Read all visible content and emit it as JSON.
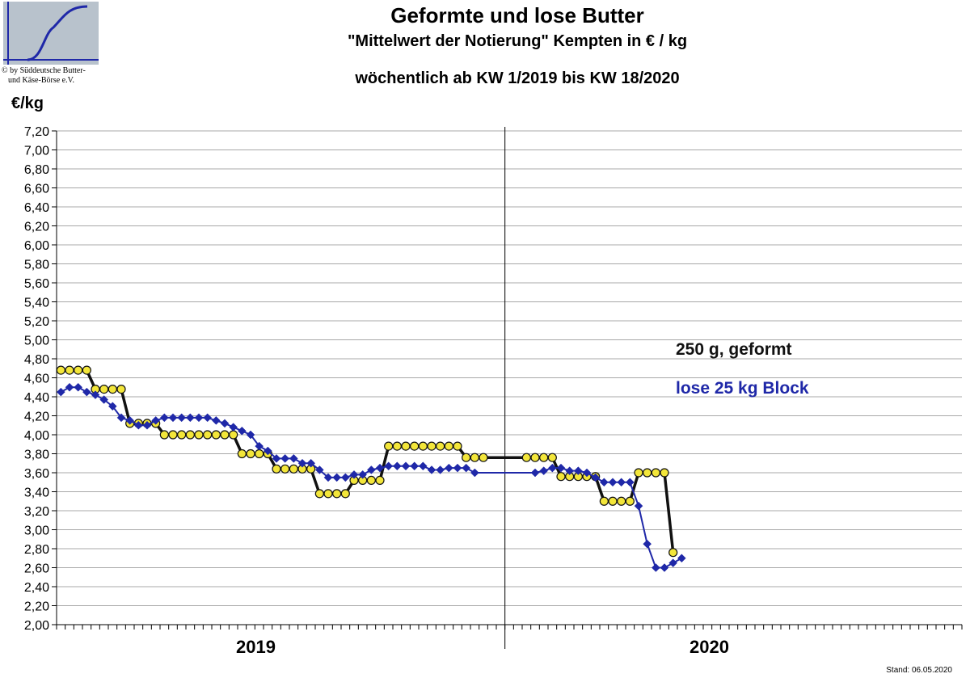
{
  "logo": {
    "caption_line1": "© by Süddeutsche Butter-",
    "caption_line2": "und Käse-Börse e.V."
  },
  "stand": "Stand: 06.05.2020",
  "chart_data": {
    "type": "line",
    "title": "Geformte und lose Butter",
    "subtitle": "\"Mittelwert der Notierung\" Kempten in € / kg",
    "subtitle2": "wöchentlich ab KW 1/2019 bis KW 18/2020",
    "ylabel": "€/kg",
    "ylim": [
      2.0,
      7.2
    ],
    "ystep": 0.2,
    "yticks": [
      "2,00",
      "2,20",
      "2,40",
      "2,60",
      "2,80",
      "3,00",
      "3,20",
      "3,40",
      "3,60",
      "3,80",
      "4,00",
      "4,20",
      "4,40",
      "4,60",
      "4,80",
      "5,00",
      "5,20",
      "5,40",
      "5,60",
      "5,80",
      "6,00",
      "6,20",
      "6,40",
      "6,60",
      "6,80",
      "7,00",
      "7,20"
    ],
    "x_unit": "week",
    "x_total_weeks": 105,
    "x_groups": [
      {
        "label": "2019",
        "weeks": 52
      },
      {
        "label": "2020",
        "weeks": 53
      }
    ],
    "grid": true,
    "legend_placement": "right-middle",
    "series": [
      {
        "name": "250 g, geformt",
        "color": "#111111",
        "marker": "circle",
        "marker_fill": "#f3e63a",
        "points": [
          [
            1,
            4.68
          ],
          [
            2,
            4.68
          ],
          [
            3,
            4.68
          ],
          [
            4,
            4.68
          ],
          [
            5,
            4.48
          ],
          [
            6,
            4.48
          ],
          [
            7,
            4.48
          ],
          [
            8,
            4.48
          ],
          [
            9,
            4.12
          ],
          [
            10,
            4.12
          ],
          [
            11,
            4.12
          ],
          [
            12,
            4.12
          ],
          [
            13,
            4.0
          ],
          [
            14,
            4.0
          ],
          [
            15,
            4.0
          ],
          [
            16,
            4.0
          ],
          [
            17,
            4.0
          ],
          [
            18,
            4.0
          ],
          [
            19,
            4.0
          ],
          [
            20,
            4.0
          ],
          [
            21,
            4.0
          ],
          [
            22,
            3.8
          ],
          [
            23,
            3.8
          ],
          [
            24,
            3.8
          ],
          [
            25,
            3.8
          ],
          [
            26,
            3.64
          ],
          [
            27,
            3.64
          ],
          [
            28,
            3.64
          ],
          [
            29,
            3.64
          ],
          [
            30,
            3.64
          ],
          [
            31,
            3.38
          ],
          [
            32,
            3.38
          ],
          [
            33,
            3.38
          ],
          [
            34,
            3.38
          ],
          [
            35,
            3.52
          ],
          [
            36,
            3.52
          ],
          [
            37,
            3.52
          ],
          [
            38,
            3.52
          ],
          [
            39,
            3.88
          ],
          [
            40,
            3.88
          ],
          [
            41,
            3.88
          ],
          [
            42,
            3.88
          ],
          [
            43,
            3.88
          ],
          [
            44,
            3.88
          ],
          [
            45,
            3.88
          ],
          [
            46,
            3.88
          ],
          [
            47,
            3.88
          ],
          [
            48,
            3.76
          ],
          [
            49,
            3.76
          ],
          [
            50,
            3.76
          ],
          [
            55,
            3.76
          ],
          [
            56,
            3.76
          ],
          [
            57,
            3.76
          ],
          [
            58,
            3.76
          ],
          [
            59,
            3.56
          ],
          [
            60,
            3.56
          ],
          [
            61,
            3.56
          ],
          [
            62,
            3.56
          ],
          [
            63,
            3.56
          ],
          [
            64,
            3.3
          ],
          [
            65,
            3.3
          ],
          [
            66,
            3.3
          ],
          [
            67,
            3.3
          ],
          [
            68,
            3.6
          ],
          [
            69,
            3.6
          ],
          [
            70,
            3.6
          ],
          [
            71,
            3.6
          ],
          [
            72,
            2.76
          ]
        ]
      },
      {
        "name": "lose 25 kg Block",
        "color": "#1f28a8",
        "marker": "diamond",
        "marker_fill": "#1f28a8",
        "points": [
          [
            1,
            4.45
          ],
          [
            2,
            4.5
          ],
          [
            3,
            4.5
          ],
          [
            4,
            4.45
          ],
          [
            5,
            4.42
          ],
          [
            6,
            4.37
          ],
          [
            7,
            4.3
          ],
          [
            8,
            4.18
          ],
          [
            9,
            4.15
          ],
          [
            10,
            4.1
          ],
          [
            11,
            4.1
          ],
          [
            12,
            4.15
          ],
          [
            13,
            4.18
          ],
          [
            14,
            4.18
          ],
          [
            15,
            4.18
          ],
          [
            16,
            4.18
          ],
          [
            17,
            4.18
          ],
          [
            18,
            4.18
          ],
          [
            19,
            4.15
          ],
          [
            20,
            4.12
          ],
          [
            21,
            4.08
          ],
          [
            22,
            4.04
          ],
          [
            23,
            4.0
          ],
          [
            24,
            3.88
          ],
          [
            25,
            3.83
          ],
          [
            26,
            3.75
          ],
          [
            27,
            3.75
          ],
          [
            28,
            3.75
          ],
          [
            29,
            3.7
          ],
          [
            30,
            3.7
          ],
          [
            31,
            3.63
          ],
          [
            32,
            3.55
          ],
          [
            33,
            3.55
          ],
          [
            34,
            3.55
          ],
          [
            35,
            3.58
          ],
          [
            36,
            3.58
          ],
          [
            37,
            3.63
          ],
          [
            38,
            3.65
          ],
          [
            39,
            3.67
          ],
          [
            40,
            3.67
          ],
          [
            41,
            3.67
          ],
          [
            42,
            3.67
          ],
          [
            43,
            3.67
          ],
          [
            44,
            3.63
          ],
          [
            45,
            3.63
          ],
          [
            46,
            3.65
          ],
          [
            47,
            3.65
          ],
          [
            48,
            3.65
          ],
          [
            49,
            3.6
          ],
          [
            56,
            3.6
          ],
          [
            57,
            3.62
          ],
          [
            58,
            3.65
          ],
          [
            59,
            3.65
          ],
          [
            60,
            3.62
          ],
          [
            61,
            3.62
          ],
          [
            62,
            3.6
          ],
          [
            63,
            3.55
          ],
          [
            64,
            3.5
          ],
          [
            65,
            3.5
          ],
          [
            66,
            3.5
          ],
          [
            67,
            3.5
          ],
          [
            68,
            3.25
          ],
          [
            69,
            2.85
          ],
          [
            70,
            2.6
          ],
          [
            71,
            2.6
          ],
          [
            72,
            2.65
          ],
          [
            73,
            2.7
          ]
        ]
      }
    ]
  }
}
